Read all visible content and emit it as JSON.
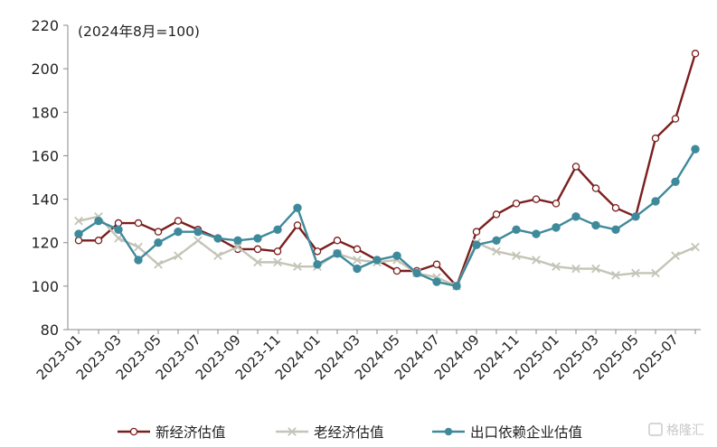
{
  "chart_data": {
    "type": "line",
    "title": "",
    "note": "(2024年8月=100)",
    "ylim": [
      80,
      220
    ],
    "yticks": [
      "80",
      "100",
      "120",
      "140",
      "160",
      "180",
      "200",
      "220"
    ],
    "xtick_labels": [
      "2023-01",
      "2023-03",
      "2023-05",
      "2023-07",
      "2023-09",
      "2023-11",
      "2024-01",
      "2024-03",
      "2024-05",
      "2024-07",
      "2024-09",
      "2024-11",
      "2025-01",
      "2025-03",
      "2025-05",
      "2025-07"
    ],
    "x": [
      "2023-01",
      "2023-02",
      "2023-03",
      "2023-04",
      "2023-05",
      "2023-06",
      "2023-07",
      "2023-08",
      "2023-09",
      "2023-10",
      "2023-11",
      "2023-12",
      "2024-01",
      "2024-02",
      "2024-03",
      "2024-04",
      "2024-05",
      "2024-06",
      "2024-07",
      "2024-08",
      "2024-09",
      "2024-10",
      "2024-11",
      "2024-12",
      "2025-01",
      "2025-02",
      "2025-03",
      "2025-04",
      "2025-05",
      "2025-06",
      "2025-07",
      "2025-08"
    ],
    "grid": false,
    "legend_position": "bottom",
    "series": [
      {
        "name": "新经济估值",
        "color": "#7b1e1e",
        "marker": "hollow-circle",
        "values": [
          121,
          121,
          129,
          129,
          125,
          130,
          126,
          122,
          117,
          117,
          116,
          128,
          116,
          121,
          117,
          112,
          107,
          107,
          110,
          100,
          125,
          133,
          138,
          140,
          138,
          155,
          145,
          136,
          132,
          168,
          177,
          207
        ]
      },
      {
        "name": "老经济估值",
        "color": "#c4c4b8",
        "marker": "x",
        "values": [
          130,
          132,
          122,
          118,
          110,
          114,
          121,
          114,
          118,
          111,
          111,
          109,
          109,
          115,
          112,
          111,
          112,
          106,
          104,
          100,
          120,
          116,
          114,
          112,
          109,
          108,
          108,
          105,
          106,
          106,
          114,
          118
        ]
      },
      {
        "name": "出口依赖企业估值",
        "color": "#3e8a9b",
        "marker": "filled-circle",
        "values": [
          124,
          130,
          126,
          112,
          120,
          125,
          125,
          122,
          121,
          122,
          126,
          136,
          110,
          115,
          108,
          112,
          114,
          106,
          102,
          100,
          119,
          121,
          126,
          124,
          127,
          132,
          128,
          126,
          132,
          139,
          148,
          163
        ]
      }
    ]
  },
  "watermark": {
    "text": "格隆汇"
  }
}
